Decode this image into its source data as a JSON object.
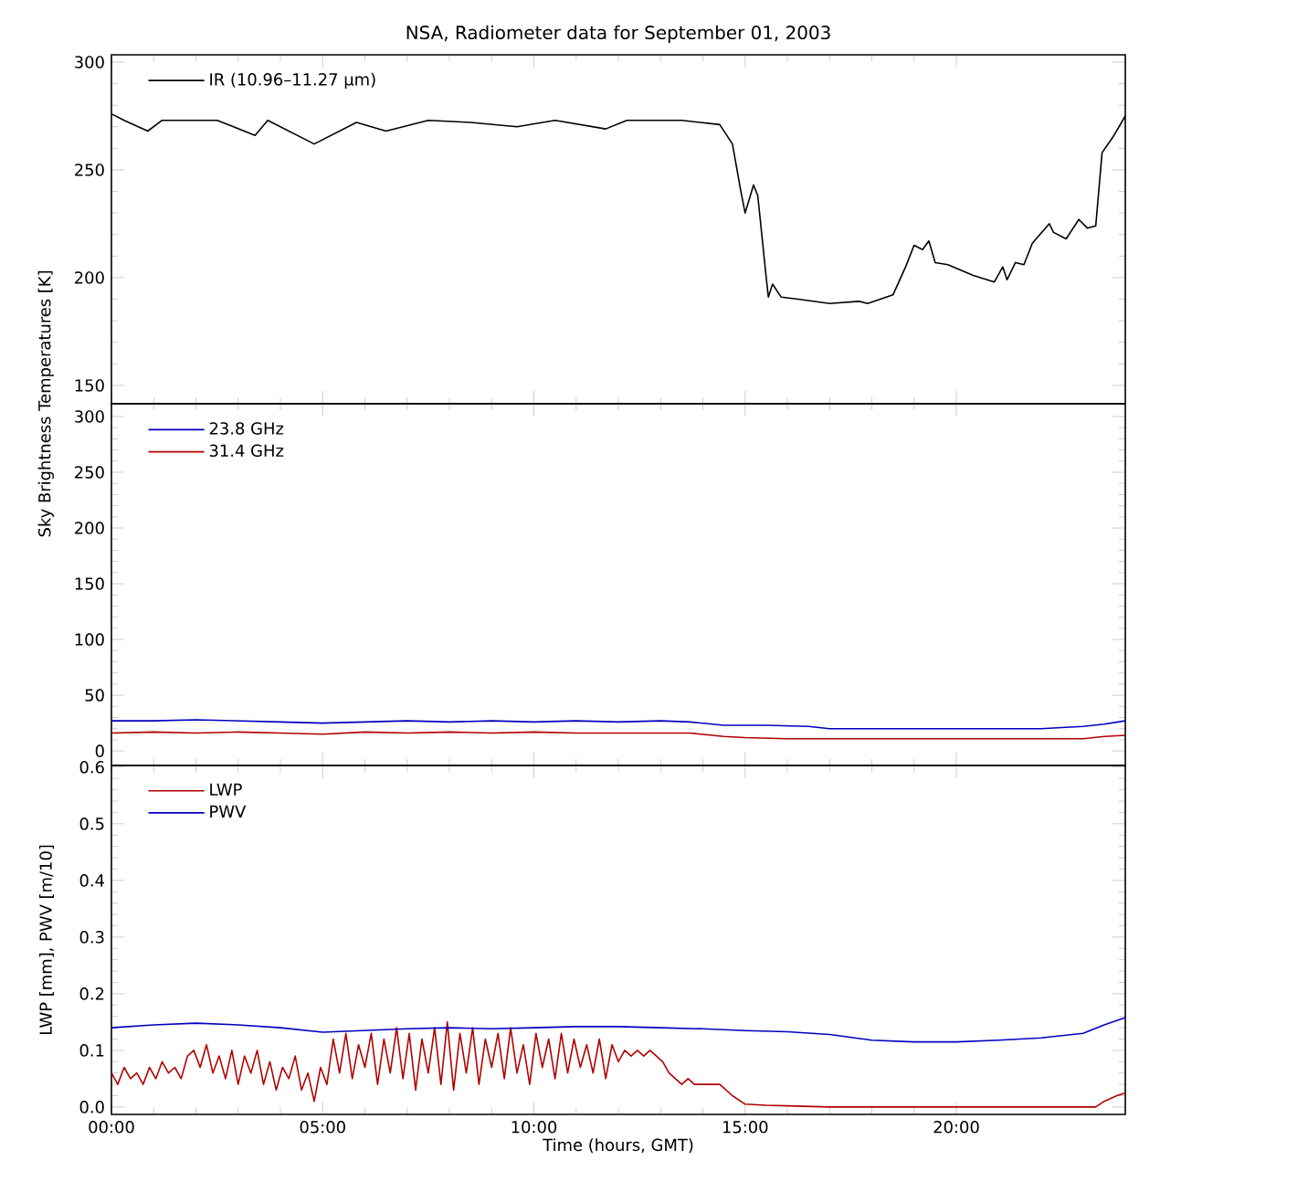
{
  "chart_data": [
    {
      "type": "line",
      "title": "NSA, Radiometer data for September 01, 2003",
      "ylabel": "Sky Brightness Temperatures [K]",
      "xlim": [
        0,
        24
      ],
      "xticks": [
        {
          "value": 0,
          "label": null
        },
        {
          "value": 5,
          "label": null
        },
        {
          "value": 10,
          "label": null
        },
        {
          "value": 15,
          "label": null
        },
        {
          "value": 20,
          "label": null
        }
      ],
      "ylim": [
        141.5,
        303.4
      ],
      "yticks": [
        150,
        200,
        250,
        300
      ],
      "tick_labels": "y",
      "legend": "top left",
      "series": [
        {
          "name": "IR (10.96–11.27 μm)",
          "color": "#000000",
          "x": [
            0,
            0.3,
            0.86,
            1.2,
            2.5,
            3.4,
            3.7,
            4.8,
            5.2,
            5.8,
            6.5,
            7.5,
            8.5,
            9.6,
            10.5,
            11.7,
            12.2,
            13.5,
            14.4,
            14.7,
            14.9,
            15.0,
            15.2,
            15.3,
            15.5,
            15.55,
            15.65,
            15.85,
            16.25,
            17.0,
            17.7,
            17.9,
            18.5,
            18.8,
            19.0,
            19.2,
            19.35,
            19.5,
            19.8,
            20.4,
            20.9,
            21.1,
            21.2,
            21.4,
            21.6,
            21.8,
            22.2,
            22.3,
            22.6,
            22.9,
            23.1,
            23.3,
            23.45,
            23.7,
            24
          ],
          "values": [
            276,
            273,
            268,
            273,
            273,
            266,
            273,
            262,
            266,
            272,
            268,
            273,
            272,
            270,
            273,
            269,
            273,
            273,
            271,
            262,
            240,
            230,
            243,
            238,
            200,
            191,
            197,
            191,
            190,
            188,
            189,
            188,
            192,
            205,
            215,
            213,
            217,
            207,
            206,
            201,
            198,
            205,
            199,
            207,
            206,
            216,
            225,
            221,
            218,
            227,
            223,
            224,
            258,
            265,
            275
          ]
        }
      ]
    },
    {
      "type": "line",
      "xlim": [
        0,
        24
      ],
      "xticks": [
        {
          "value": 0,
          "label": null
        },
        {
          "value": 5,
          "label": null
        },
        {
          "value": 10,
          "label": null
        },
        {
          "value": 15,
          "label": null
        },
        {
          "value": 20,
          "label": null
        }
      ],
      "ylim": [
        -13,
        311.5
      ],
      "yticks": [
        0,
        50,
        100,
        150,
        200,
        250,
        300
      ],
      "tick_labels": "y",
      "legend": "top left",
      "series": [
        {
          "name": "23.8 GHz",
          "color": "#0000c0",
          "x": [
            0,
            1,
            2,
            3,
            4,
            5,
            6,
            7,
            8,
            9,
            10,
            11,
            12,
            13,
            13.7,
            14.5,
            15.5,
            16.5,
            17,
            18,
            19,
            20,
            21,
            22,
            22.5,
            23,
            23.5,
            24
          ],
          "values": [
            27,
            27,
            28,
            27,
            26,
            25,
            26,
            27,
            26,
            27,
            26,
            27,
            26,
            27,
            26,
            23,
            23,
            22,
            20,
            20,
            20,
            20,
            20,
            20,
            21,
            22,
            24,
            27
          ]
        },
        {
          "name": "31.4 GHz",
          "color": "#b00000",
          "x": [
            0,
            1,
            2,
            3,
            4,
            5,
            6,
            7,
            8,
            9,
            10,
            11,
            12,
            13,
            13.7,
            14.5,
            15,
            16,
            20,
            22.5,
            23,
            23.5,
            24
          ],
          "values": [
            16,
            17,
            16,
            17,
            16,
            15,
            17,
            16,
            17,
            16,
            17,
            16,
            16,
            16,
            16,
            13,
            12,
            11,
            11,
            11,
            11,
            13,
            14
          ]
        }
      ]
    },
    {
      "type": "line",
      "xlabel": "Time (hours, GMT)",
      "ylabel": "LWP [mm], PWV [m/10]",
      "xlim": [
        0,
        24
      ],
      "xticks": [
        {
          "value": 0,
          "label": "00:00"
        },
        {
          "value": 5,
          "label": "05:00"
        },
        {
          "value": 10,
          "label": "10:00"
        },
        {
          "value": 15,
          "label": "15:00"
        },
        {
          "value": 20,
          "label": "20:00"
        }
      ],
      "ylim": [
        -0.013,
        0.603
      ],
      "yticks": [
        {
          "value": 0,
          "label": "0.0"
        },
        0.1,
        0.2,
        0.3,
        0.4,
        0.5,
        0.6
      ],
      "legend": "top left",
      "series": [
        {
          "name": "LWP",
          "color": "#b00000",
          "x": [
            0,
            0.15,
            0.3,
            0.45,
            0.6,
            0.75,
            0.9,
            1.05,
            1.2,
            1.35,
            1.5,
            1.65,
            1.8,
            1.95,
            2.1,
            2.25,
            2.4,
            2.55,
            2.7,
            2.85,
            3,
            3.15,
            3.3,
            3.45,
            3.6,
            3.75,
            3.9,
            4.05,
            4.2,
            4.35,
            4.5,
            4.65,
            4.8,
            4.95,
            5.1,
            5.25,
            5.4,
            5.55,
            5.7,
            5.85,
            6,
            6.15,
            6.3,
            6.45,
            6.6,
            6.75,
            6.9,
            7.05,
            7.2,
            7.35,
            7.5,
            7.65,
            7.8,
            7.95,
            8.1,
            8.25,
            8.4,
            8.55,
            8.7,
            8.85,
            9,
            9.15,
            9.3,
            9.45,
            9.6,
            9.75,
            9.9,
            10.05,
            10.2,
            10.35,
            10.5,
            10.65,
            10.8,
            10.95,
            11.1,
            11.25,
            11.4,
            11.55,
            11.7,
            11.85,
            12,
            12.15,
            12.3,
            12.45,
            12.6,
            12.75,
            12.9,
            13.05,
            13.2,
            13.35,
            13.5,
            13.65,
            13.8,
            14.1,
            14.4,
            14.7,
            15.0,
            15.5,
            16.0,
            17.0,
            20.0,
            23.3,
            23.5,
            23.8,
            24
          ],
          "values": [
            0.06,
            0.04,
            0.07,
            0.05,
            0.06,
            0.04,
            0.07,
            0.05,
            0.08,
            0.06,
            0.07,
            0.05,
            0.09,
            0.1,
            0.07,
            0.11,
            0.06,
            0.09,
            0.05,
            0.1,
            0.04,
            0.09,
            0.06,
            0.1,
            0.04,
            0.08,
            0.03,
            0.07,
            0.05,
            0.09,
            0.03,
            0.06,
            0.01,
            0.07,
            0.04,
            0.12,
            0.06,
            0.13,
            0.05,
            0.11,
            0.07,
            0.13,
            0.04,
            0.12,
            0.06,
            0.14,
            0.05,
            0.13,
            0.03,
            0.12,
            0.06,
            0.14,
            0.04,
            0.15,
            0.03,
            0.13,
            0.06,
            0.14,
            0.04,
            0.12,
            0.07,
            0.13,
            0.05,
            0.14,
            0.06,
            0.11,
            0.04,
            0.13,
            0.07,
            0.12,
            0.05,
            0.13,
            0.06,
            0.12,
            0.07,
            0.11,
            0.06,
            0.12,
            0.05,
            0.11,
            0.08,
            0.1,
            0.09,
            0.1,
            0.09,
            0.1,
            0.09,
            0.08,
            0.06,
            0.05,
            0.04,
            0.05,
            0.04,
            0.04,
            0.04,
            0.02,
            0.005,
            0.003,
            0.002,
            0,
            0,
            0,
            0.01,
            0.02,
            0.025
          ]
        },
        {
          "name": "PWV",
          "color": "#0000c0",
          "x": [
            0,
            1,
            2,
            3,
            4,
            5,
            6,
            7,
            8,
            9,
            10,
            11,
            12,
            13,
            14,
            15,
            16,
            17,
            18,
            19,
            20,
            21,
            22,
            23,
            23.5,
            24
          ],
          "values": [
            0.14,
            0.145,
            0.148,
            0.145,
            0.14,
            0.132,
            0.135,
            0.138,
            0.14,
            0.138,
            0.14,
            0.142,
            0.142,
            0.14,
            0.138,
            0.135,
            0.133,
            0.128,
            0.118,
            0.115,
            0.115,
            0.118,
            0.122,
            0.13,
            0.145,
            0.158
          ]
        }
      ]
    }
  ]
}
